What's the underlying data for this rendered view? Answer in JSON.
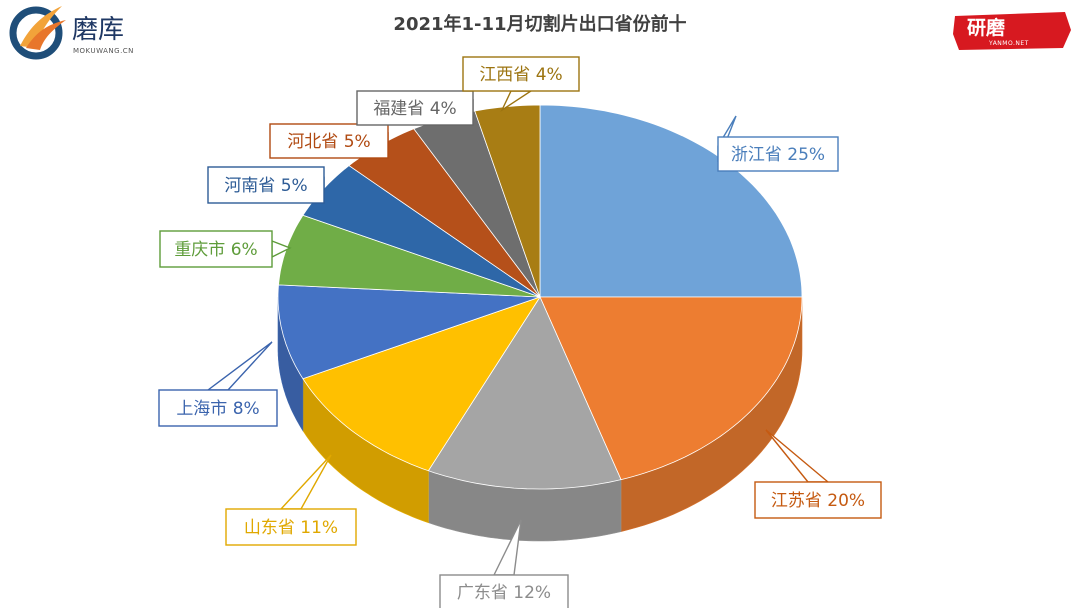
{
  "brand_left": {
    "name": "磨库",
    "domain": "MOKUWANG.CN"
  },
  "brand_right": {
    "name": "研磨",
    "domain": "YANMO.NET"
  },
  "chart_data": {
    "type": "pie",
    "title": "2021年1-11月切割片出口省份前十",
    "categories": [
      "浙江省",
      "江苏省",
      "广东省",
      "山东省",
      "上海市",
      "重庆市",
      "河南省",
      "河北省",
      "福建省",
      "江西省"
    ],
    "values": [
      25,
      20,
      12,
      11,
      8,
      6,
      5,
      5,
      4,
      4
    ],
    "labels": [
      "浙江省 25%",
      "江苏省 20%",
      "广东省 12%",
      "山东省 11%",
      "上海市 8%",
      "重庆市 6%",
      "河南省 5%",
      "河北省 5%",
      "福建省 4%",
      "江西省 4%"
    ],
    "colors": [
      "#6FA3D8",
      "#ED7D31",
      "#A5A5A5",
      "#FFC000",
      "#4472C4",
      "#70AD47",
      "#2E67A8",
      "#B5501A",
      "#6E6E6E",
      "#A87D14"
    ],
    "label_colors": [
      "#4A7EBB",
      "#C55A11",
      "#8C8C8C",
      "#E0A800",
      "#3B64AD",
      "#5E9C3A",
      "#2E5C96",
      "#B04A12",
      "#666666",
      "#9C7410"
    ],
    "style": "3d-pie",
    "legend": "none"
  }
}
